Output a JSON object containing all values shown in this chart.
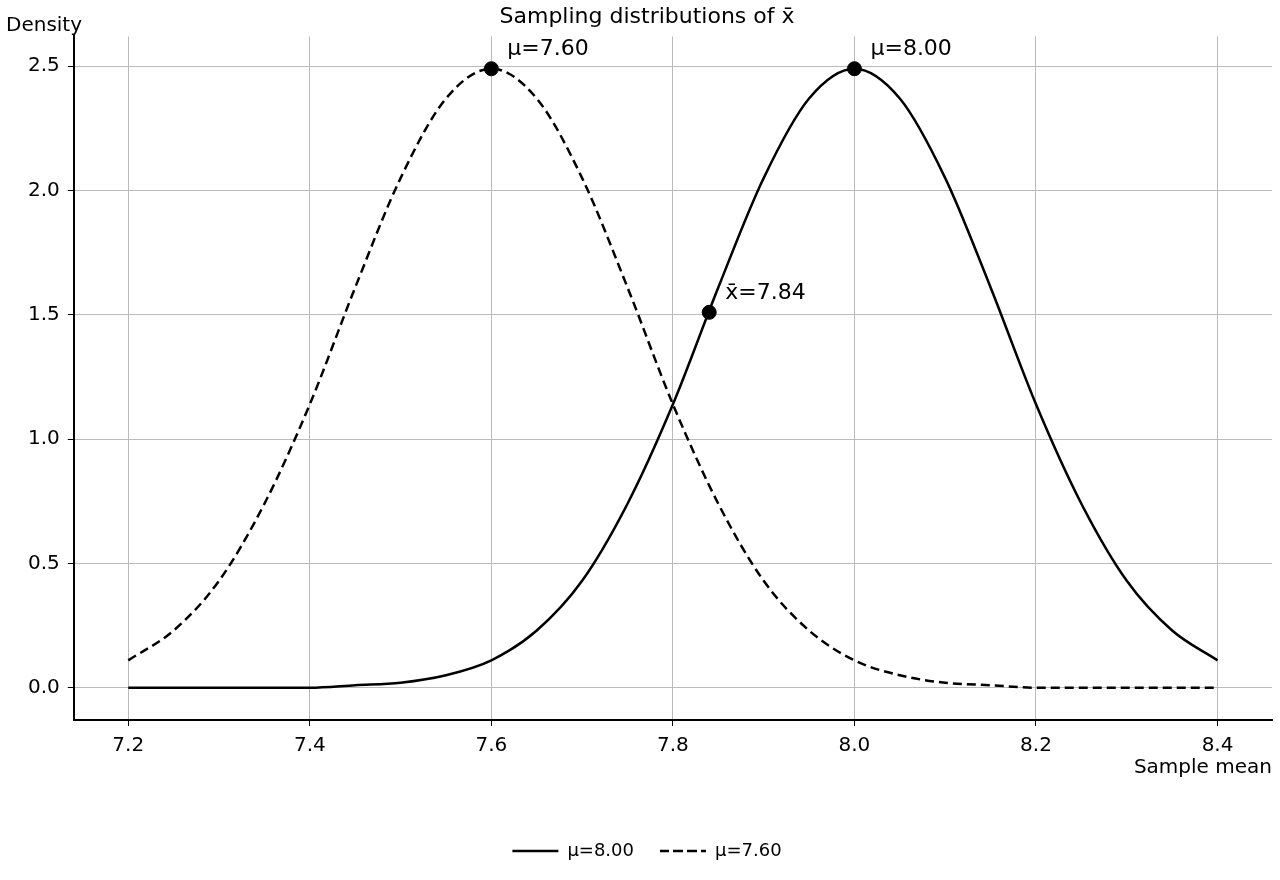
{
  "chart_data": {
    "type": "line",
    "title": "Sampling distributions of x̄",
    "xlabel": "Sample mean",
    "ylabel": "Density",
    "xlim": [
      7.14,
      8.46
    ],
    "xticks": [
      {
        "value": 7.2,
        "label": "7.2"
      },
      {
        "value": 7.4,
        "label": "7.4"
      },
      {
        "value": 7.6,
        "label": "7.6"
      },
      {
        "value": 7.8,
        "label": "7.8"
      },
      {
        "value": 8.0,
        "label": "8.0"
      },
      {
        "value": 8.2,
        "label": "8.2"
      },
      {
        "value": 8.4,
        "label": "8.4"
      }
    ],
    "ylim": [
      -0.13,
      2.62
    ],
    "yticks": [
      {
        "value": 0,
        "label": "0.0"
      },
      {
        "value": 0.5,
        "label": "0.5"
      },
      {
        "value": 1.0,
        "label": "1.0"
      },
      {
        "value": 1.5,
        "label": "1.5"
      },
      {
        "value": 2.0,
        "label": "2.0"
      },
      {
        "value": 2.5,
        "label": "2.5"
      }
    ],
    "grid": true,
    "legend": "bottom",
    "series": [
      {
        "name": "μ=8.00",
        "color": "#000000",
        "line_style": "solid",
        "marker": "none",
        "x": [
          7.2,
          7.25,
          7.3,
          7.35,
          7.4,
          7.45,
          7.5,
          7.55,
          7.6,
          7.65,
          7.7,
          7.75,
          7.8,
          7.85,
          7.9,
          7.95,
          8.0,
          8.05,
          8.1,
          8.15,
          8.2,
          8.25,
          8.3,
          8.35,
          8.4
        ],
        "values": [
          0,
          0,
          0,
          0,
          0,
          0.01,
          0.02,
          0.05,
          0.11,
          0.23,
          0.43,
          0.74,
          1.14,
          1.61,
          2.05,
          2.37,
          2.49,
          2.37,
          2.05,
          1.61,
          1.14,
          0.74,
          0.43,
          0.23,
          0.11
        ]
      },
      {
        "name": "μ=7.60",
        "color": "#000000",
        "line_style": "dashed",
        "marker": "none",
        "x": [
          7.2,
          7.25,
          7.3,
          7.35,
          7.4,
          7.45,
          7.5,
          7.55,
          7.6,
          7.65,
          7.7,
          7.75,
          7.8,
          7.85,
          7.9,
          7.95,
          8.0,
          8.05,
          8.1,
          8.15,
          8.2,
          8.25,
          8.3,
          8.35,
          8.4
        ],
        "values": [
          0.11,
          0.23,
          0.43,
          0.74,
          1.14,
          1.61,
          2.05,
          2.37,
          2.49,
          2.37,
          2.05,
          1.61,
          1.14,
          0.74,
          0.43,
          0.23,
          0.11,
          0.05,
          0.02,
          0.01,
          0,
          0,
          0,
          0,
          0
        ]
      },
      {
        "type": "scatter",
        "color": "#000000",
        "marker": "circle",
        "x": [
          7.6,
          8.0,
          7.84
        ],
        "values": [
          2.49,
          2.49,
          1.51
        ]
      }
    ],
    "annotations": [
      {
        "text": "μ=7.60",
        "x": 7.6,
        "y": 2.49
      },
      {
        "text": "μ=8.00",
        "x": 8.0,
        "y": 2.49
      },
      {
        "text": "x̄=7.84",
        "x": 7.84,
        "y": 1.51
      }
    ]
  }
}
